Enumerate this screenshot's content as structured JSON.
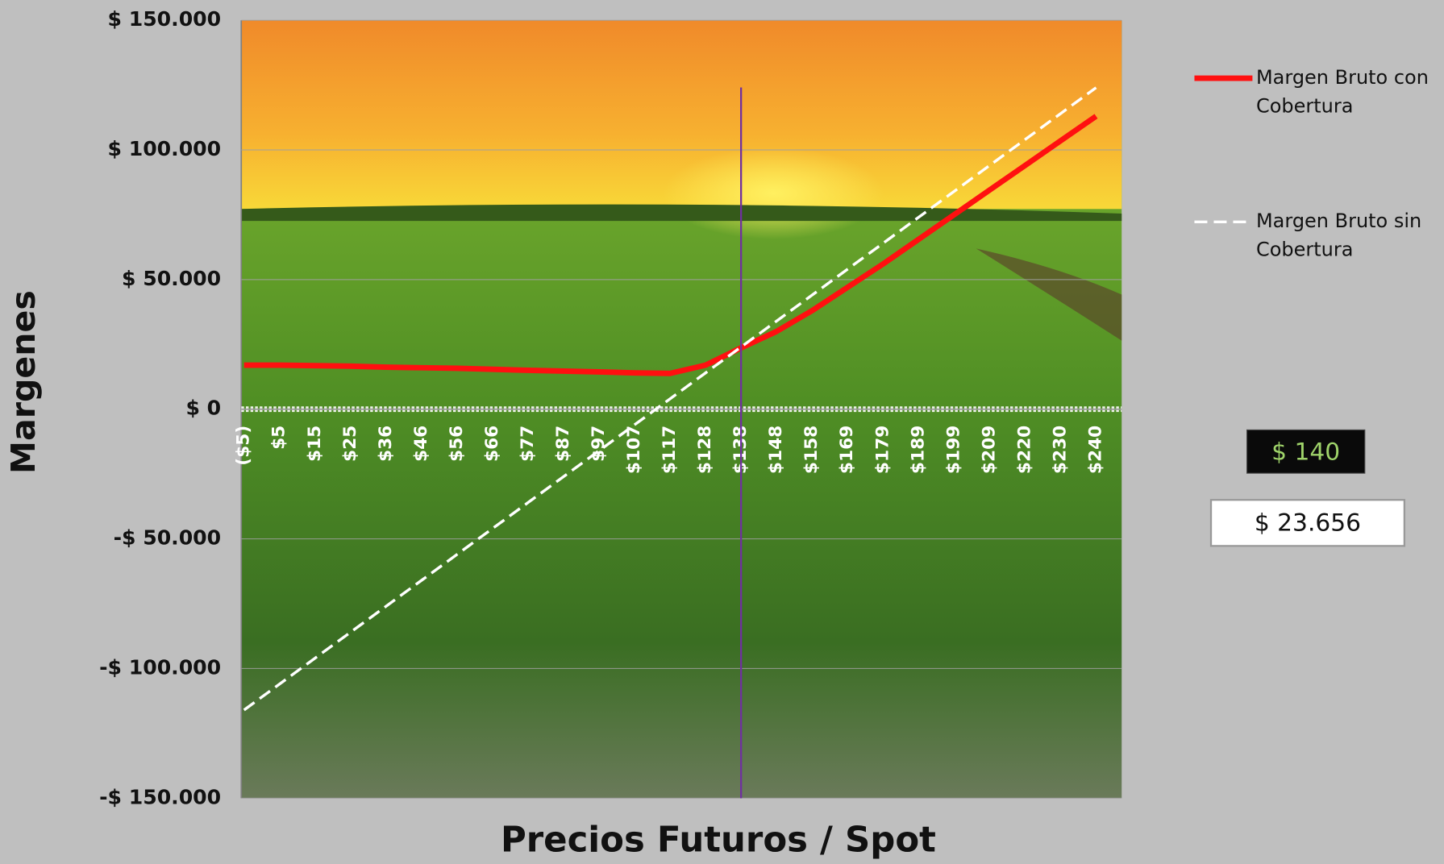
{
  "chart_data": {
    "type": "line",
    "x_label": "Precios Futuros / Spot",
    "y_label": "Margenes",
    "categories": [
      "($5)",
      "$5",
      "$15",
      "$25",
      "$36",
      "$46",
      "$56",
      "$66",
      "$77",
      "$87",
      "$97",
      "$107",
      "$117",
      "$128",
      "$138",
      "$148",
      "$158",
      "$169",
      "$179",
      "$189",
      "$199",
      "$209",
      "$220",
      "$230",
      "$240"
    ],
    "series": [
      {
        "name": "Margen Bruto con Cobertura",
        "color": "#ff1010",
        "dashed": false,
        "values": [
          17000,
          17000,
          16800,
          16600,
          16200,
          16000,
          15800,
          15400,
          15000,
          14700,
          14400,
          14000,
          13800,
          17000,
          23656,
          30000,
          38000,
          47000,
          56000,
          65500,
          75000,
          84500,
          94000,
          103500,
          113000
        ]
      },
      {
        "name": "Margen Bruto sin Cobertura",
        "color": "#ffffff",
        "dashed": true,
        "values": [
          -116000,
          -106000,
          -96000,
          -86000,
          -76000,
          -66000,
          -56000,
          -46000,
          -36000,
          -26000,
          -16000,
          -6000,
          4000,
          14000,
          24000,
          34000,
          44000,
          54000,
          64000,
          74000,
          84000,
          94000,
          104000,
          114000,
          124000
        ]
      }
    ],
    "ylim": [
      -150000,
      150000
    ],
    "yticks": [
      {
        "value": -150000,
        "label": "-$ 150.000"
      },
      {
        "value": -100000,
        "label": "-$ 100.000"
      },
      {
        "value": -50000,
        "label": "-$ 50.000"
      },
      {
        "value": 0,
        "label": "$ 0"
      },
      {
        "value": 50000,
        "label": "$ 50.000"
      },
      {
        "value": 100000,
        "label": "$ 100.000"
      },
      {
        "value": 150000,
        "label": "$ 150.000"
      }
    ],
    "grid": true,
    "legend": "right",
    "selected": {
      "price": 140,
      "price_label": "$ 140",
      "margin": 23656,
      "margin_label": "$ 23.656"
    }
  }
}
